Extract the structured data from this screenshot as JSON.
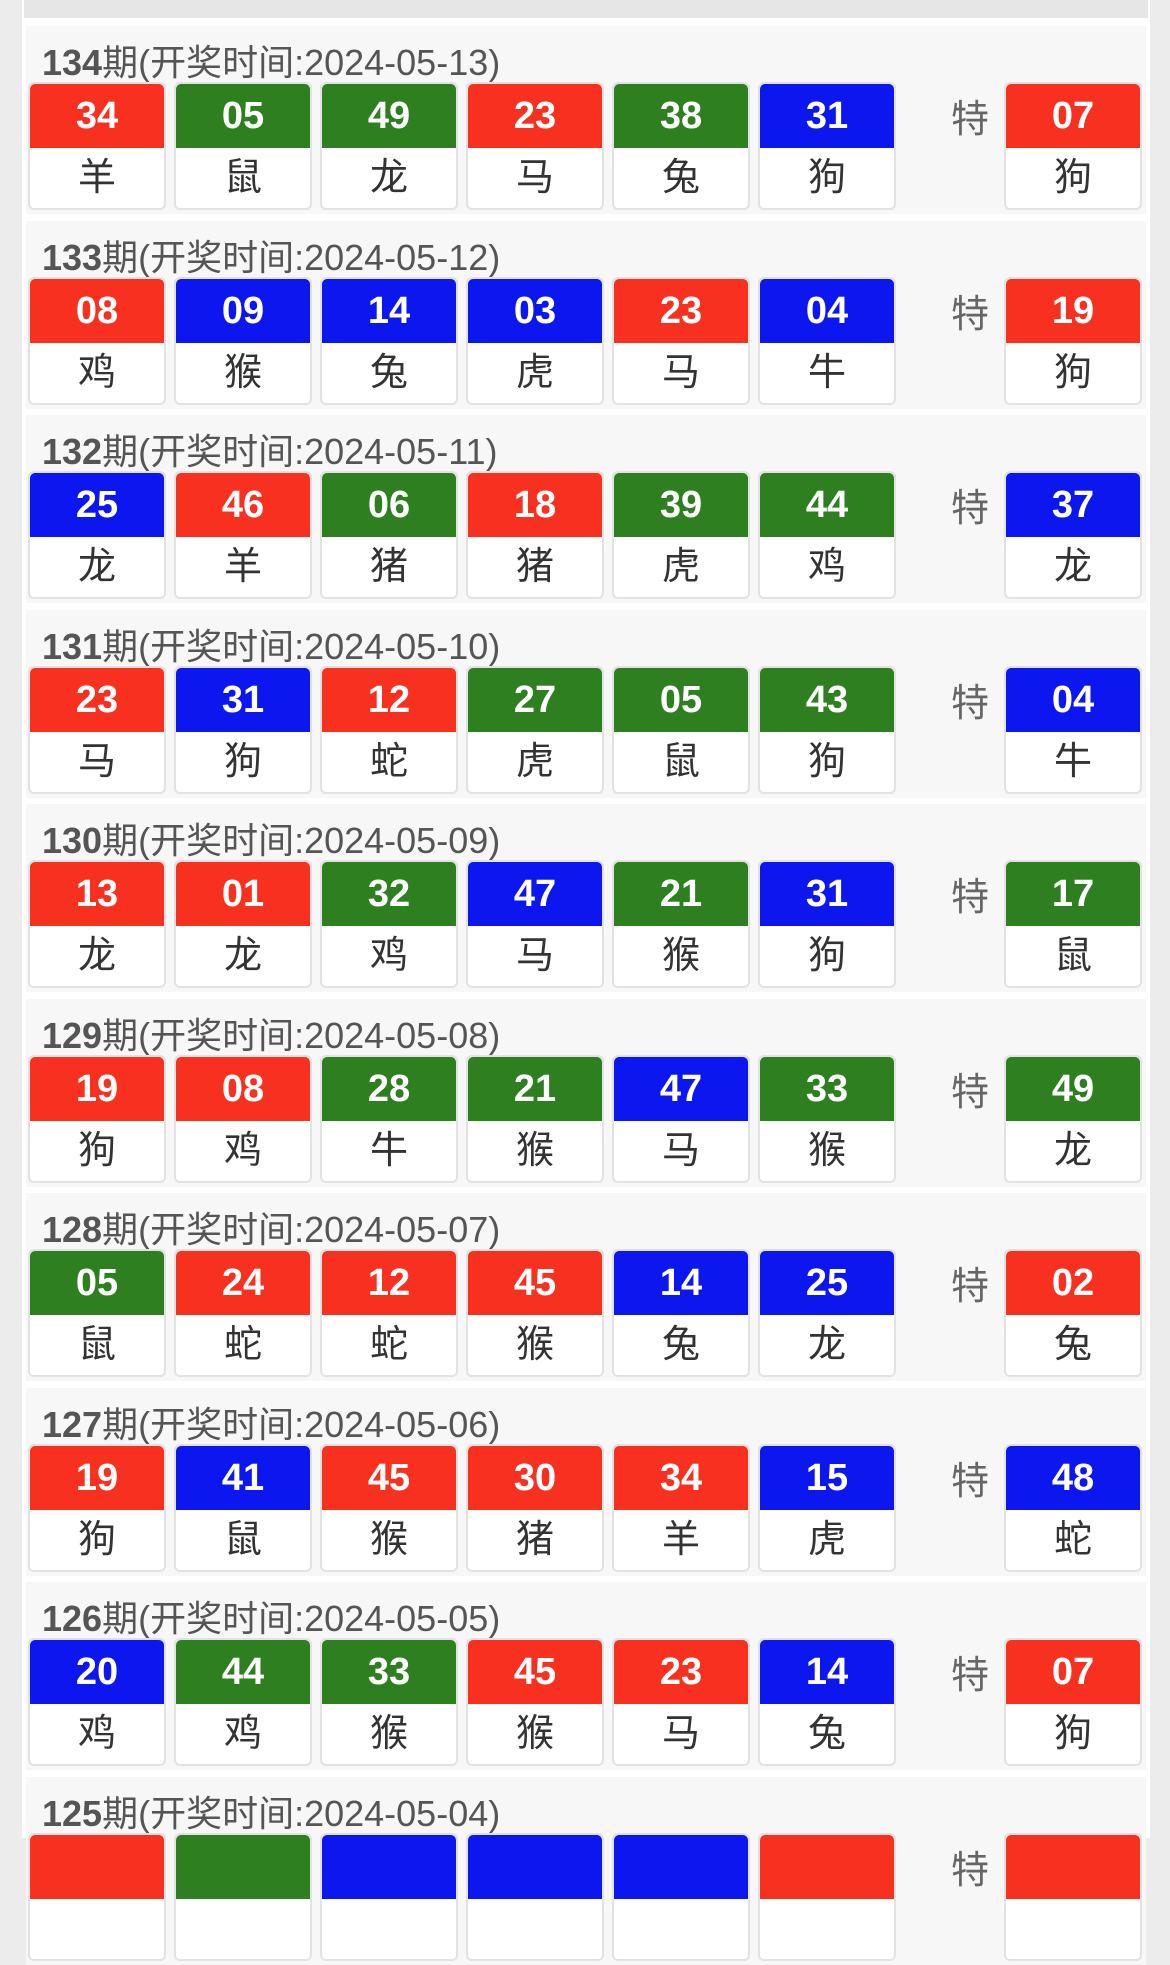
{
  "colors": {
    "red": "#f7301f",
    "green": "#2d7f1f",
    "blue": "#0c16ee"
  },
  "special_label": "特",
  "period_suffix": "期",
  "draws": [
    {
      "period": "134",
      "date_text": "(开奖时间:2024-05-13)",
      "balls": [
        {
          "n": "34",
          "z": "羊",
          "c": "red"
        },
        {
          "n": "05",
          "z": "鼠",
          "c": "green"
        },
        {
          "n": "49",
          "z": "龙",
          "c": "green"
        },
        {
          "n": "23",
          "z": "马",
          "c": "red"
        },
        {
          "n": "38",
          "z": "兔",
          "c": "green"
        },
        {
          "n": "31",
          "z": "狗",
          "c": "blue"
        }
      ],
      "special": {
        "n": "07",
        "z": "狗",
        "c": "red"
      }
    },
    {
      "period": "133",
      "date_text": "(开奖时间:2024-05-12)",
      "balls": [
        {
          "n": "08",
          "z": "鸡",
          "c": "red"
        },
        {
          "n": "09",
          "z": "猴",
          "c": "blue"
        },
        {
          "n": "14",
          "z": "兔",
          "c": "blue"
        },
        {
          "n": "03",
          "z": "虎",
          "c": "blue"
        },
        {
          "n": "23",
          "z": "马",
          "c": "red"
        },
        {
          "n": "04",
          "z": "牛",
          "c": "blue"
        }
      ],
      "special": {
        "n": "19",
        "z": "狗",
        "c": "red"
      }
    },
    {
      "period": "132",
      "date_text": "(开奖时间:2024-05-11)",
      "balls": [
        {
          "n": "25",
          "z": "龙",
          "c": "blue"
        },
        {
          "n": "46",
          "z": "羊",
          "c": "red"
        },
        {
          "n": "06",
          "z": "猪",
          "c": "green"
        },
        {
          "n": "18",
          "z": "猪",
          "c": "red"
        },
        {
          "n": "39",
          "z": "虎",
          "c": "green"
        },
        {
          "n": "44",
          "z": "鸡",
          "c": "green"
        }
      ],
      "special": {
        "n": "37",
        "z": "龙",
        "c": "blue"
      }
    },
    {
      "period": "131",
      "date_text": "(开奖时间:2024-05-10)",
      "balls": [
        {
          "n": "23",
          "z": "马",
          "c": "red"
        },
        {
          "n": "31",
          "z": "狗",
          "c": "blue"
        },
        {
          "n": "12",
          "z": "蛇",
          "c": "red"
        },
        {
          "n": "27",
          "z": "虎",
          "c": "green"
        },
        {
          "n": "05",
          "z": "鼠",
          "c": "green"
        },
        {
          "n": "43",
          "z": "狗",
          "c": "green"
        }
      ],
      "special": {
        "n": "04",
        "z": "牛",
        "c": "blue"
      }
    },
    {
      "period": "130",
      "date_text": "(开奖时间:2024-05-09)",
      "balls": [
        {
          "n": "13",
          "z": "龙",
          "c": "red"
        },
        {
          "n": "01",
          "z": "龙",
          "c": "red"
        },
        {
          "n": "32",
          "z": "鸡",
          "c": "green"
        },
        {
          "n": "47",
          "z": "马",
          "c": "blue"
        },
        {
          "n": "21",
          "z": "猴",
          "c": "green"
        },
        {
          "n": "31",
          "z": "狗",
          "c": "blue"
        }
      ],
      "special": {
        "n": "17",
        "z": "鼠",
        "c": "green"
      }
    },
    {
      "period": "129",
      "date_text": "(开奖时间:2024-05-08)",
      "balls": [
        {
          "n": "19",
          "z": "狗",
          "c": "red"
        },
        {
          "n": "08",
          "z": "鸡",
          "c": "red"
        },
        {
          "n": "28",
          "z": "牛",
          "c": "green"
        },
        {
          "n": "21",
          "z": "猴",
          "c": "green"
        },
        {
          "n": "47",
          "z": "马",
          "c": "blue"
        },
        {
          "n": "33",
          "z": "猴",
          "c": "green"
        }
      ],
      "special": {
        "n": "49",
        "z": "龙",
        "c": "green"
      }
    },
    {
      "period": "128",
      "date_text": "(开奖时间:2024-05-07)",
      "balls": [
        {
          "n": "05",
          "z": "鼠",
          "c": "green"
        },
        {
          "n": "24",
          "z": "蛇",
          "c": "red"
        },
        {
          "n": "12",
          "z": "蛇",
          "c": "red"
        },
        {
          "n": "45",
          "z": "猴",
          "c": "red"
        },
        {
          "n": "14",
          "z": "兔",
          "c": "blue"
        },
        {
          "n": "25",
          "z": "龙",
          "c": "blue"
        }
      ],
      "special": {
        "n": "02",
        "z": "兔",
        "c": "red"
      }
    },
    {
      "period": "127",
      "date_text": "(开奖时间:2024-05-06)",
      "balls": [
        {
          "n": "19",
          "z": "狗",
          "c": "red"
        },
        {
          "n": "41",
          "z": "鼠",
          "c": "blue"
        },
        {
          "n": "45",
          "z": "猴",
          "c": "red"
        },
        {
          "n": "30",
          "z": "猪",
          "c": "red"
        },
        {
          "n": "34",
          "z": "羊",
          "c": "red"
        },
        {
          "n": "15",
          "z": "虎",
          "c": "blue"
        }
      ],
      "special": {
        "n": "48",
        "z": "蛇",
        "c": "blue"
      }
    },
    {
      "period": "126",
      "date_text": "(开奖时间:2024-05-05)",
      "balls": [
        {
          "n": "20",
          "z": "鸡",
          "c": "blue"
        },
        {
          "n": "44",
          "z": "鸡",
          "c": "green"
        },
        {
          "n": "33",
          "z": "猴",
          "c": "green"
        },
        {
          "n": "45",
          "z": "猴",
          "c": "red"
        },
        {
          "n": "23",
          "z": "马",
          "c": "red"
        },
        {
          "n": "14",
          "z": "兔",
          "c": "blue"
        }
      ],
      "special": {
        "n": "07",
        "z": "狗",
        "c": "red"
      }
    },
    {
      "period": "125",
      "date_text": "(开奖时间:2024-05-04)",
      "balls": [
        {
          "n": "",
          "z": "",
          "c": "red"
        },
        {
          "n": "",
          "z": "",
          "c": "green"
        },
        {
          "n": "",
          "z": "",
          "c": "blue"
        },
        {
          "n": "",
          "z": "",
          "c": "blue"
        },
        {
          "n": "",
          "z": "",
          "c": "blue"
        },
        {
          "n": "",
          "z": "",
          "c": "red"
        }
      ],
      "special": {
        "n": "",
        "z": "",
        "c": "red"
      }
    }
  ]
}
